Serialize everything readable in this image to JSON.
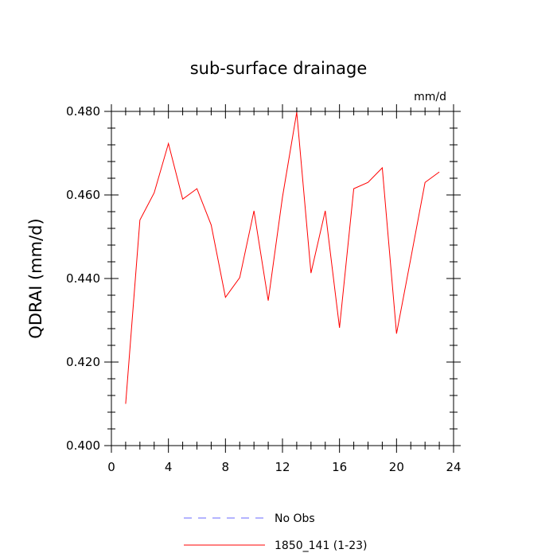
{
  "chart_data": {
    "type": "line",
    "title": "sub-surface drainage",
    "units_label": "mm/d",
    "xlabel": "",
    "ylabel": "QDRAI  (mm/d)",
    "xlim": [
      0,
      24
    ],
    "ylim": [
      0.4,
      0.48
    ],
    "x_ticks": [
      0,
      4,
      8,
      12,
      16,
      20,
      24
    ],
    "x_tick_labels": [
      "0",
      "4",
      "8",
      "12",
      "16",
      "20",
      "24"
    ],
    "y_ticks": [
      0.4,
      0.42,
      0.44,
      0.46,
      0.48
    ],
    "y_tick_labels": [
      "0.400",
      "0.420",
      "0.440",
      "0.460",
      "0.480"
    ],
    "grid": false,
    "legend_placement": "bottom",
    "series": [
      {
        "name": "1850_141 (1-23)",
        "color": "#ff0000",
        "dash": "solid",
        "x": [
          1,
          2,
          3,
          4,
          5,
          6,
          7,
          8,
          9,
          10,
          11,
          12,
          13,
          14,
          15,
          16,
          17,
          18,
          19,
          20,
          21,
          22,
          23
        ],
        "values": [
          0.41,
          0.454,
          0.4605,
          0.4723,
          0.459,
          0.4615,
          0.4528,
          0.4355,
          0.4402,
          0.4562,
          0.4347,
          0.4595,
          0.4798,
          0.4413,
          0.4562,
          0.4282,
          0.4615,
          0.463,
          0.4665,
          0.4268,
          0.4448,
          0.463,
          0.4655
        ]
      }
    ],
    "legend": [
      {
        "label": "No Obs",
        "color": "#6a6aff",
        "dash": "dashed"
      },
      {
        "label": "1850_141 (1-23)",
        "color": "#ff0000",
        "dash": "solid"
      }
    ]
  }
}
